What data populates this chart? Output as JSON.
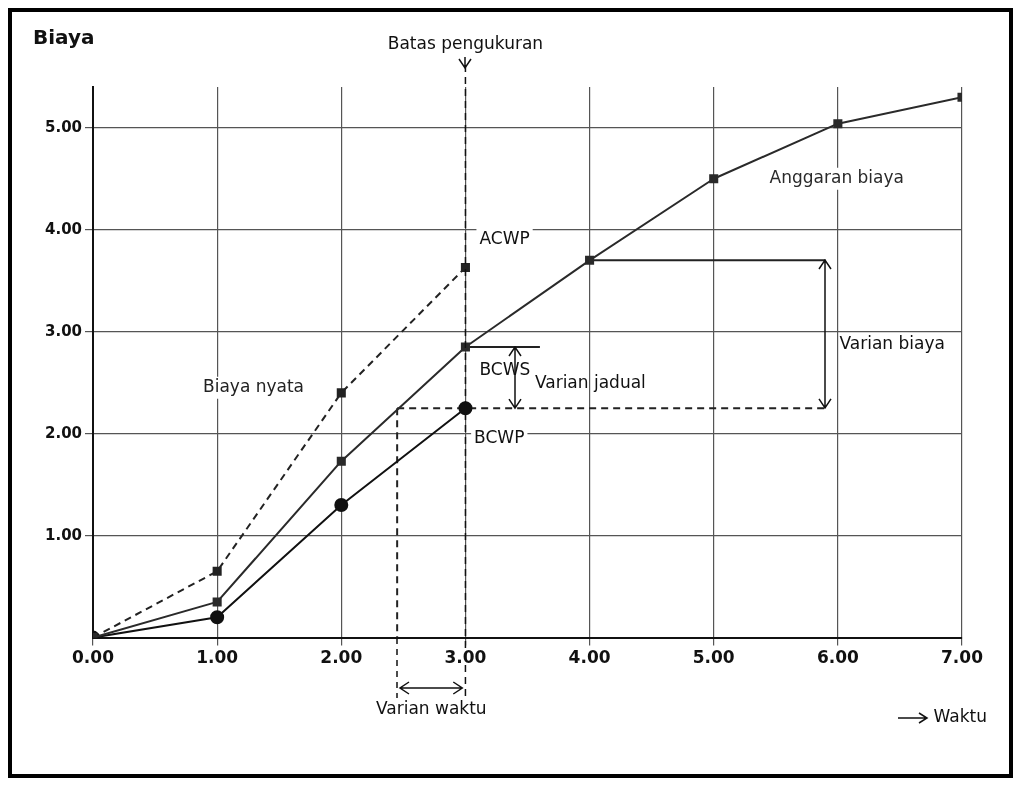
{
  "chart_data": {
    "type": "line",
    "xlabel": "Waktu",
    "ylabel": "Biaya",
    "x": [
      0,
      1,
      2,
      3,
      4,
      5,
      6,
      7
    ],
    "series": [
      {
        "name": "Anggaran biaya",
        "color": "#2a2a2a",
        "marker": "square",
        "line_style": "solid",
        "values": [
          0,
          0.35,
          1.73,
          2.85,
          3.7,
          4.5,
          5.04,
          5.3
        ]
      },
      {
        "name": "BCWP",
        "color": "#111111",
        "marker": "circle",
        "line_style": "solid",
        "values": [
          0,
          0.2,
          1.3,
          2.25,
          null,
          null,
          null,
          null
        ]
      },
      {
        "name": "Biaya nyata",
        "color": "#222222",
        "marker": "square",
        "line_style": "dashed",
        "values": [
          0,
          0.65,
          2.4,
          3.63,
          null,
          null,
          null,
          null
        ]
      },
      {
        "color": "#222222",
        "marker": "none",
        "line_style": "dashed",
        "x": [
          2.45,
          5.9
        ],
        "values": [
          2.25,
          2.25
        ]
      },
      {
        "color": "#222222",
        "marker": "none",
        "line_style": "solid",
        "x": [
          4,
          5.9
        ],
        "values": [
          3.7,
          3.7
        ]
      },
      {
        "color": "#222222",
        "marker": "none",
        "line_style": "solid",
        "x": [
          3,
          3.6
        ],
        "values": [
          2.85,
          2.85
        ]
      },
      {
        "color": "#222222",
        "marker": "none",
        "line_style": "dashed",
        "x": [
          2.45,
          2.45
        ],
        "values": [
          2.25,
          0
        ]
      }
    ],
    "xlim": [
      0,
      7
    ],
    "ylim": [
      0,
      5.4
    ],
    "xticks": [
      {
        "value": 0,
        "label": "0.00"
      },
      {
        "value": 1,
        "label": "1.00"
      },
      {
        "value": 2,
        "label": "2.00"
      },
      {
        "value": 3,
        "label": "3.00"
      },
      {
        "value": 4,
        "label": "4.00"
      },
      {
        "value": 5,
        "label": "5.00"
      },
      {
        "value": 6,
        "label": "6.00"
      },
      {
        "value": 7,
        "label": "7.00"
      }
    ],
    "yticks": [
      {
        "value": 1,
        "label": "1.00"
      },
      {
        "value": 2,
        "label": "2.00"
      },
      {
        "value": 3,
        "label": "3.00"
      },
      {
        "value": 4,
        "label": "4.00"
      },
      {
        "value": 5,
        "label": "5.00"
      }
    ],
    "grid": true,
    "ref_lines": [
      {
        "axis": "x",
        "value": 3,
        "label": "Batas pengukuran",
        "line_style": "dashed"
      }
    ],
    "annotations": [
      {
        "text": "ACWP",
        "x": 3,
        "y": 3.63
      },
      {
        "text": "BCWS",
        "x": 3,
        "y": 2.85
      },
      "Varian jadual",
      "Varian biaya",
      "Varian waktu"
    ]
  }
}
